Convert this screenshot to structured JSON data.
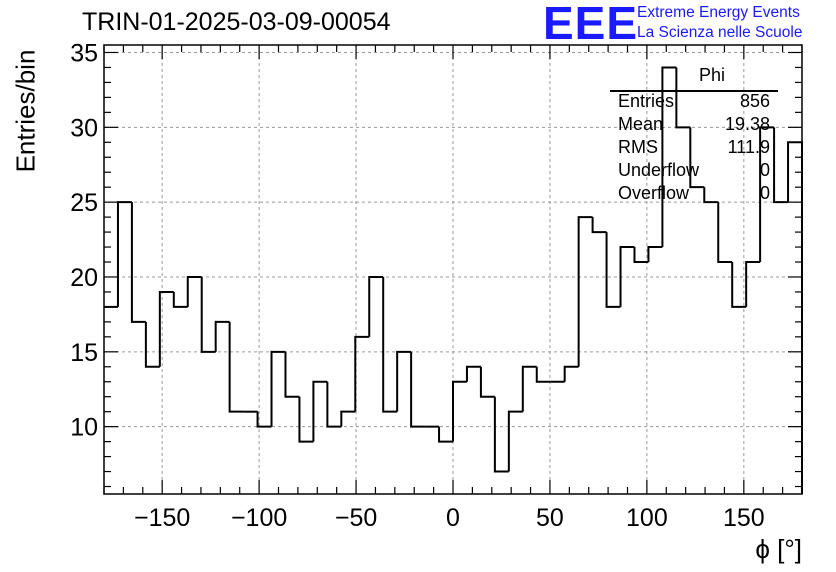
{
  "header": {
    "title": "TRIN-01-2025-03-09-00054",
    "logo_text": "EEE",
    "brand_line1": "Extreme Energy Events",
    "brand_line2": "La Scienza nelle Scuole"
  },
  "stats_box": {
    "name": "Phi",
    "rows": [
      {
        "key": "Entries",
        "value": "856"
      },
      {
        "key": "Mean",
        "value": "19.38"
      },
      {
        "key": "RMS",
        "value": "111.9"
      },
      {
        "key": "Underflow",
        "value": "0"
      },
      {
        "key": "Overflow",
        "value": "0"
      }
    ]
  },
  "colors": {
    "brand": "#1a1aff",
    "line": "#000000",
    "grid": "#9a9a9a"
  },
  "chart_data": {
    "type": "histogram",
    "title": "TRIN-01-2025-03-09-00054",
    "xlabel": "ϕ [°]",
    "ylabel": "Entries/bin",
    "xlim": [
      -180,
      180
    ],
    "ylim": [
      5.5,
      35.5
    ],
    "bin_width": 7.2,
    "x_ticks": [
      -150,
      -100,
      -50,
      0,
      50,
      100,
      150
    ],
    "y_ticks": [
      10,
      15,
      20,
      25,
      30,
      35
    ],
    "grid": true,
    "values": [
      18,
      25,
      17,
      14,
      19,
      18,
      20,
      15,
      17,
      11,
      11,
      10,
      15,
      12,
      9,
      13,
      10,
      11,
      16,
      20,
      11,
      15,
      10,
      10,
      9,
      13,
      14,
      12,
      7,
      11,
      14,
      13,
      13,
      14,
      24,
      23,
      18,
      22,
      21,
      22,
      34,
      30,
      26,
      25,
      21,
      18,
      21,
      30,
      25,
      29
    ]
  }
}
